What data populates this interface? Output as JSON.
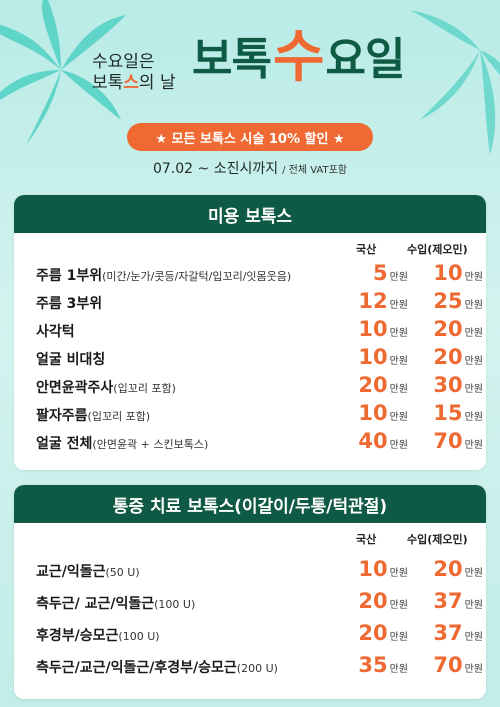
{
  "colors": {
    "accent": "#ef6a33",
    "primary": "#0f5a45",
    "background": "#c9efea"
  },
  "hero": {
    "sub_line1": "수요일은",
    "sub_line2_pre": "보톡",
    "sub_line2_accent": "스",
    "sub_line2_post": "의 날",
    "title_pre": "보톡",
    "title_accent": "수",
    "title_post": "요일"
  },
  "promo": {
    "pill": "★ 모든 보톡스 시술 10% 할인 ★",
    "period": "07.02 ~ 소진시까지",
    "period_note": "/ 전체 VAT포함"
  },
  "section1": {
    "title": "미용 보톡스",
    "col1": "국산",
    "col2": "수입(제오민)",
    "unit": "만원",
    "rows": [
      {
        "name": "주름 1부위",
        "note": "(미간/눈가/콧등/자갈턱/입꼬리/잇몸웃음)",
        "p1": "5",
        "p2": "10"
      },
      {
        "name": "주름 3부위",
        "note": "",
        "p1": "12",
        "p2": "25"
      },
      {
        "name": "사각턱",
        "note": "",
        "p1": "10",
        "p2": "20"
      },
      {
        "name": "얼굴 비대칭",
        "note": "",
        "p1": "10",
        "p2": "20"
      },
      {
        "name": "안면윤곽주사",
        "note": "(입꼬리 포함)",
        "p1": "20",
        "p2": "30"
      },
      {
        "name": "팔자주름",
        "note": "(입꼬리 포함)",
        "p1": "10",
        "p2": "15"
      },
      {
        "name": "얼굴 전체",
        "note": "(안면윤곽 + 스킨보톡스)",
        "p1": "40",
        "p2": "70"
      }
    ]
  },
  "section2": {
    "title": "통증 치료 보톡스(이갈이/두통/턱관절)",
    "col1": "국산",
    "col2": "수입(제오민)",
    "unit": "만원",
    "rows": [
      {
        "name": "교근/익돌근",
        "note": "(50 U)",
        "p1": "10",
        "p2": "20"
      },
      {
        "name": "측두근/ 교근/익돌근",
        "note": "(100 U)",
        "p1": "20",
        "p2": "37"
      },
      {
        "name": "후경부/승모근",
        "note": "(100 U)",
        "p1": "20",
        "p2": "37"
      },
      {
        "name": "측두근/교근/익돌근/후경부/승모근",
        "note": "(200 U)",
        "p1": "35",
        "p2": "70"
      }
    ]
  }
}
